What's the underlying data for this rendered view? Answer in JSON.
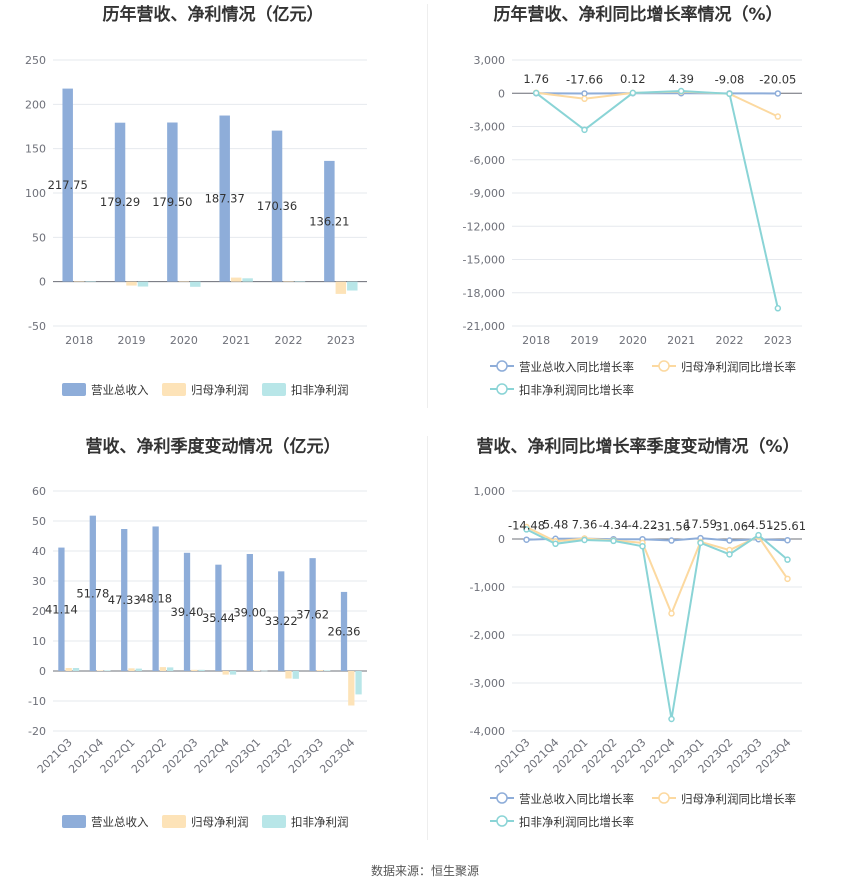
{
  "source": "数据来源：恒生聚源",
  "colors": {
    "revenue": "#8eadd9",
    "parent_profit": "#fde3b8",
    "nonrecurring_profit": "#b8e6e8",
    "revenue_line": "#8eadd9",
    "parent_line": "#fcd9a0",
    "nonrecurring_line": "#8ad4d6",
    "grid": "#e6e9ee",
    "axis": "#6e7079"
  },
  "chart_data": [
    {
      "id": "annual_bar",
      "type": "bar",
      "title": "历年营收、净利情况（亿元）",
      "categories": [
        "2018",
        "2019",
        "2020",
        "2021",
        "2022",
        "2023"
      ],
      "ylim": [
        -50,
        250
      ],
      "yticks": [
        -50,
        0,
        50,
        100,
        150,
        200,
        250
      ],
      "series": [
        {
          "name": "营业总收入",
          "color_key": "revenue",
          "values": [
            217.75,
            179.29,
            179.5,
            187.37,
            170.36,
            136.21
          ],
          "labels": [
            "217.75",
            "179.29",
            "179.50",
            "187.37",
            "170.36",
            "136.21"
          ]
        },
        {
          "name": "归母净利润",
          "color_key": "parent_profit",
          "values": [
            0.3,
            -4.4,
            0.3,
            4.6,
            0.3,
            -13.8
          ]
        },
        {
          "name": "扣非净利润",
          "color_key": "nonrecurring_profit",
          "values": [
            0.2,
            -5.5,
            -5.8,
            3.8,
            0.2,
            -10.0
          ]
        }
      ],
      "legend_position": "bottom",
      "grid": true
    },
    {
      "id": "annual_growth",
      "type": "line",
      "title": "历年营收、净利同比增长率情况（%）",
      "categories": [
        "2018",
        "2019",
        "2020",
        "2021",
        "2022",
        "2023"
      ],
      "ylim": [
        -21000,
        3000
      ],
      "yticks": [
        -21000,
        -18000,
        -15000,
        -12000,
        -9000,
        -6000,
        -3000,
        0,
        3000
      ],
      "ytick_labels": [
        "-21,000",
        "-18,000",
        "-15,000",
        "-12,000",
        "-9,000",
        "-6,000",
        "-3,000",
        "0",
        "3,000"
      ],
      "series": [
        {
          "name": "营业总收入同比增长率",
          "color_key": "revenue_line",
          "values": [
            1.76,
            -17.66,
            0.12,
            4.39,
            -9.08,
            -20.05
          ],
          "labels": [
            "1.76",
            "-17.66",
            "0.12",
            "4.39",
            "-9.08",
            "-20.05"
          ]
        },
        {
          "name": "归母净利润同比增长率",
          "color_key": "parent_line",
          "values": [
            50,
            -500,
            30,
            150,
            -50,
            -2100
          ]
        },
        {
          "name": "扣非净利润同比增长率",
          "color_key": "nonrecurring_line",
          "values": [
            20,
            -3300,
            30,
            200,
            -50,
            -19400
          ]
        }
      ],
      "legend_position": "bottom",
      "grid": true
    },
    {
      "id": "quarterly_bar",
      "type": "bar",
      "title": "营收、净利季度变动情况（亿元）",
      "categories": [
        "2021Q3",
        "2021Q4",
        "2022Q1",
        "2022Q2",
        "2022Q3",
        "2022Q4",
        "2023Q1",
        "2023Q2",
        "2023Q3",
        "2023Q4"
      ],
      "ylim": [
        -20,
        60
      ],
      "yticks": [
        -20,
        -10,
        0,
        10,
        20,
        30,
        40,
        50,
        60
      ],
      "series": [
        {
          "name": "营业总收入",
          "color_key": "revenue",
          "values": [
            41.14,
            51.78,
            47.33,
            48.18,
            39.4,
            35.44,
            39.0,
            33.22,
            37.62,
            26.36
          ],
          "labels": [
            "41.14",
            "51.78",
            "47.33",
            "48.18",
            "39.40",
            "35.44",
            "39.00",
            "33.22",
            "37.62",
            "26.36"
          ]
        },
        {
          "name": "归母净利润",
          "color_key": "parent_profit",
          "values": [
            1.0,
            0.2,
            0.9,
            1.3,
            0.4,
            -1.2,
            0.2,
            -2.5,
            0.3,
            -11.5
          ]
        },
        {
          "name": "扣非净利润",
          "color_key": "nonrecurring_profit",
          "values": [
            1.0,
            0.2,
            0.8,
            1.2,
            0.4,
            -1.2,
            0.1,
            -2.6,
            0.2,
            -7.8
          ]
        }
      ],
      "legend_position": "bottom",
      "grid": true
    },
    {
      "id": "quarterly_growth",
      "type": "line",
      "title": "营收、净利同比增长率季度变动情况（%）",
      "categories": [
        "2021Q3",
        "2021Q4",
        "2022Q1",
        "2022Q2",
        "2022Q3",
        "2022Q4",
        "2023Q1",
        "2023Q2",
        "2023Q3",
        "2023Q4"
      ],
      "ylim": [
        -4000,
        1000
      ],
      "yticks": [
        -4000,
        -3000,
        -2000,
        -1000,
        0,
        1000
      ],
      "ytick_labels": [
        "-4,000",
        "-3,000",
        "-2,000",
        "-1,000",
        "0",
        "1,000"
      ],
      "series": [
        {
          "name": "营业总收入同比增长率",
          "color_key": "revenue_line",
          "values": [
            -14.48,
            5.48,
            7.36,
            -4.34,
            -4.22,
            -31.56,
            17.59,
            -31.06,
            -4.51,
            -25.61
          ],
          "labels": [
            "-14.48",
            "5.48",
            "7.36",
            "-4.34",
            "-4.22",
            "-31.56",
            "17.59",
            "-31.06",
            "-4.51",
            "-25.61"
          ]
        },
        {
          "name": "归母净利润同比增长率",
          "color_key": "parent_line",
          "values": [
            250,
            -50,
            10,
            -30,
            -80,
            -1550,
            -60,
            -230,
            50,
            -830
          ]
        },
        {
          "name": "扣非净利润同比增长率",
          "color_key": "nonrecurring_line",
          "values": [
            200,
            -100,
            -20,
            -40,
            -150,
            -3750,
            -80,
            -320,
            80,
            -430
          ]
        }
      ],
      "legend_position": "bottom",
      "grid": true
    }
  ]
}
